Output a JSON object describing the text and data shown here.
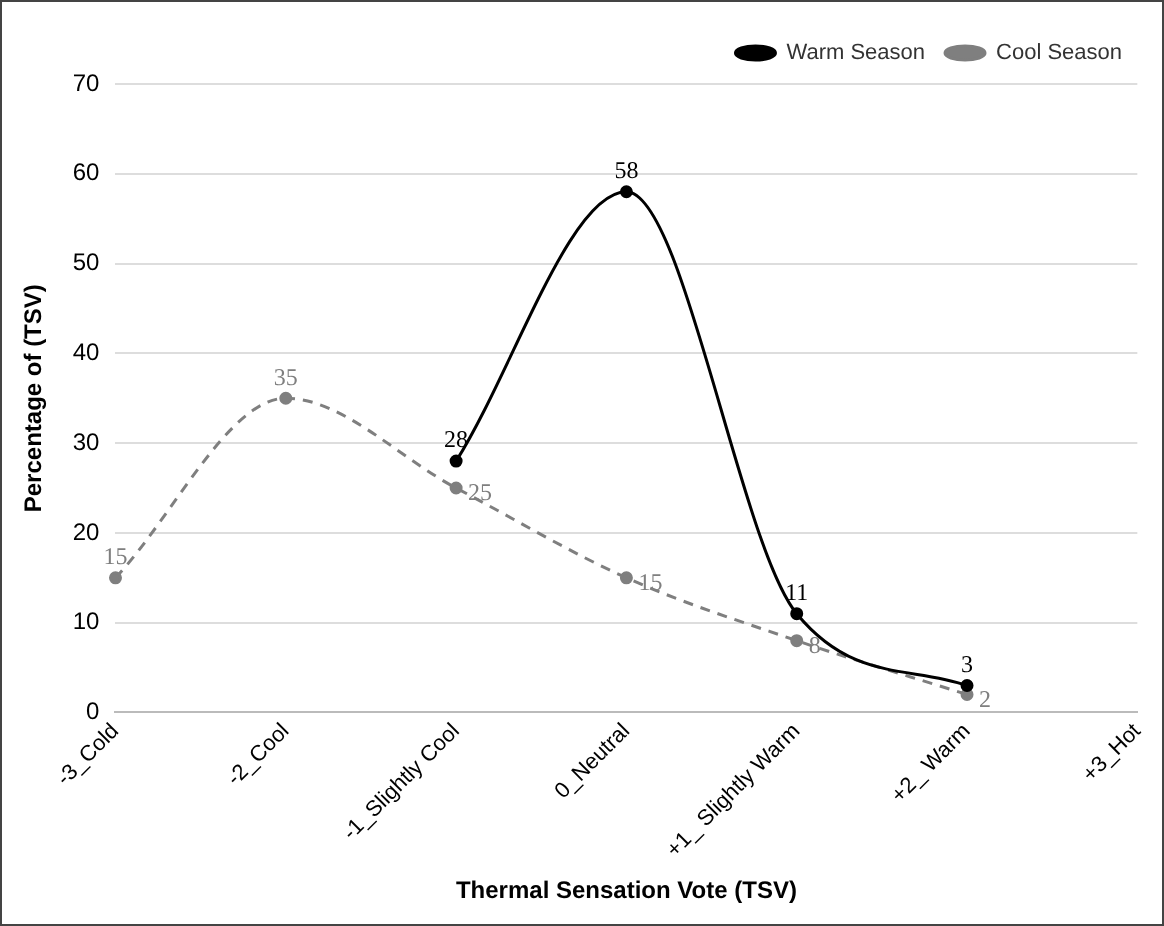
{
  "chart_data": {
    "type": "line",
    "xlabel": "Thermal Sensation Vote (TSV)",
    "ylabel": "Percentage of (TSV)",
    "categories": [
      "-3_Cold",
      "-2_Cool",
      "-1_Slightly Cool",
      "0_Neutral",
      "+1_ Slightly Warm",
      "+2_ Warm",
      "+3_Hot"
    ],
    "series": [
      {
        "name": "Warm Season",
        "color": "#000000",
        "line_style": "solid",
        "values": [
          null,
          null,
          28,
          58,
          11,
          3,
          null
        ]
      },
      {
        "name": "Cool Season",
        "color": "#7f7f7f",
        "line_style": "dashed",
        "values": [
          15,
          35,
          25,
          15,
          8,
          2,
          null
        ]
      }
    ],
    "ylim": [
      0,
      70
    ],
    "yticks": [
      0,
      10,
      20,
      30,
      40,
      50,
      60,
      70
    ],
    "grid": "y",
    "legend": "top right",
    "marker": "circle",
    "data_labels": true
  }
}
